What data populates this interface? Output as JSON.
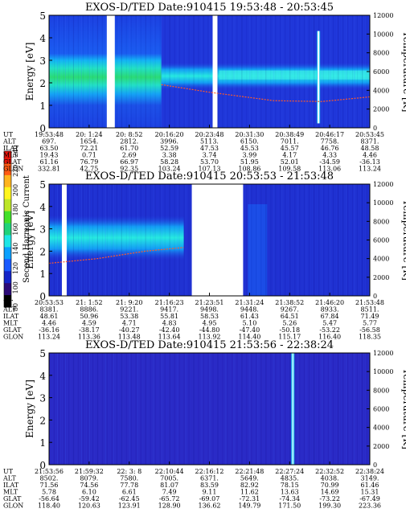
{
  "colorbar": {
    "label": "Second Harmonic Current",
    "ticks": [
      "80",
      "100",
      "120",
      "140",
      "160",
      "180",
      "200",
      "220",
      "240"
    ],
    "colors": [
      "#000000",
      "#2c0a78",
      "#1424c8",
      "#1a5aff",
      "#0aa0ff",
      "#1ee6e6",
      "#21d27a",
      "#43e02a",
      "#bde628",
      "#fff51e",
      "#ffb41e",
      "#ff5a14",
      "#e6140a"
    ]
  },
  "chart_data": [
    {
      "type": "heatmap",
      "title": "EXOS-D/TED   Date:910415  19:53:48 - 20:53:45",
      "ylabel": "Energy [eV]",
      "y2label": "Temperature [K]",
      "ylim": [
        0,
        5
      ],
      "y2lim": [
        0,
        12000
      ],
      "yticks": [
        "0",
        "1",
        "2",
        "3",
        "4",
        "5"
      ],
      "y2ticks": [
        "0",
        "2000",
        "4000",
        "6000",
        "8000",
        "10000",
        "12000"
      ],
      "orbit_table": {
        "row_labels": [
          "UT",
          "ALT",
          "ILAT",
          "MLT",
          "GLAT",
          "GLON"
        ],
        "columns": [
          [
            "19:53:48",
            "697.",
            "63.50",
            "19.43",
            "61.16",
            "332.81"
          ],
          [
            "20: 1:24",
            "1654.",
            "72.21",
            "0.71",
            "76.79",
            "42.75"
          ],
          [
            "20: 8:52",
            "2812.",
            "61.70",
            "2.69",
            "66.97",
            "92.35"
          ],
          [
            "20:16:20",
            "3996.",
            "52.59",
            "3.38",
            "58.28",
            "103.24"
          ],
          [
            "20:23:48",
            "5113.",
            "47.53",
            "3.74",
            "53.70",
            "107.13"
          ],
          [
            "20:31:30",
            "6150.",
            "45.53",
            "3.99",
            "51.95",
            "108.86"
          ],
          [
            "20:38:49",
            "7011.",
            "45.57",
            "4.17",
            "52.01",
            "109.58"
          ],
          [
            "20:46:17",
            "7758.",
            "46.76",
            "4.33",
            "-34.59",
            "113.06"
          ],
          [
            "20:53:45",
            "8371.",
            "48.58",
            "4.46",
            "-36.13",
            "113.24"
          ]
        ]
      },
      "gaps": [
        [
          0.18,
          0.205
        ],
        [
          0.51,
          0.525
        ]
      ],
      "temperature_curve": [
        [
          0.35,
          4600
        ],
        [
          0.5,
          3800
        ],
        [
          0.7,
          2900
        ],
        [
          0.85,
          2800
        ],
        [
          1.0,
          3300
        ]
      ],
      "spikes": [
        {
          "x": 0.84,
          "lo": 0.2,
          "hi": 4.3
        }
      ]
    },
    {
      "type": "heatmap",
      "title": "EXOS-D/TED   Date:910415  20:53:53 - 21:53:48",
      "ylabel": "Energy [eV]",
      "y2label": "Temperature [K]",
      "ylim": [
        0,
        5
      ],
      "y2lim": [
        0,
        12000
      ],
      "yticks": [
        "0",
        "1",
        "2",
        "3",
        "4",
        "5"
      ],
      "y2ticks": [
        "0",
        "2000",
        "4000",
        "6000",
        "8000",
        "10000",
        "12000"
      ],
      "orbit_table": {
        "row_labels": [
          "UT",
          "ALT",
          "ILAT",
          "MLT",
          "GLAT",
          "GLON"
        ],
        "columns": [
          [
            "20:53:53",
            "8381.",
            "48.61",
            "4.46",
            "-36.16",
            "113.24"
          ],
          [
            "21: 1:52",
            "8886.",
            "50.96",
            "4.59",
            "-38.17",
            "113.36"
          ],
          [
            "21: 9:20",
            "9221.",
            "53.38",
            "4.71",
            "-40.27",
            "113.48"
          ],
          [
            "21:16:23",
            "9417.",
            "55.81",
            "4.83",
            "-42.40",
            "113.64"
          ],
          [
            "21:23:51",
            "9498.",
            "58.53",
            "4.95",
            "-44.80",
            "113.92"
          ],
          [
            "21:31:24",
            "9448.",
            "61.43",
            "5.10",
            "-47.40",
            "114.40"
          ],
          [
            "21:38:52",
            "9267.",
            "64.51",
            "5.26",
            "-50.18",
            "115.17"
          ],
          [
            "21:46:20",
            "8933.",
            "67.84",
            "5.47",
            "-53.22",
            "116.40"
          ],
          [
            "21:53:48",
            "8511.",
            "71.49",
            "5.77",
            "-56.58",
            "118.35"
          ]
        ]
      },
      "gaps": [
        [
          0.04,
          0.055
        ],
        [
          0.445,
          0.605
        ]
      ],
      "temperature_curve": [
        [
          0.0,
          3500
        ],
        [
          0.15,
          4000
        ],
        [
          0.3,
          4800
        ],
        [
          0.42,
          5200
        ]
      ],
      "spikes": []
    },
    {
      "type": "heatmap",
      "title": "EXOS-D/TED   Date:910415  21:53:56 - 22:38:24",
      "ylabel": "Energy [eV]",
      "y2label": "Temperature [K]",
      "ylim": [
        0,
        5
      ],
      "y2lim": [
        0,
        12000
      ],
      "yticks": [
        "0",
        "1",
        "2",
        "3",
        "4",
        "5"
      ],
      "y2ticks": [
        "0",
        "2000",
        "4000",
        "6000",
        "8000",
        "10000",
        "12000"
      ],
      "orbit_table": {
        "row_labels": [
          "UT",
          "ALT",
          "ILAT",
          "MLT",
          "GLAT",
          "GLON"
        ],
        "columns": [
          [
            "21:53:56",
            "8502.",
            "71.56",
            "5.78",
            "-56.64",
            "118.40"
          ],
          [
            "21:59:32",
            "8079.",
            "74.56",
            "6.10",
            "-59.42",
            "120.63"
          ],
          [
            "22: 3: 8",
            "7580.",
            "77.78",
            "6.61",
            "-62.45",
            "123.91"
          ],
          [
            "22:10:44",
            "7005.",
            "81.07",
            "7.49",
            "-65.72",
            "128.90"
          ],
          [
            "22:16:12",
            "6371.",
            "83.59",
            "9.11",
            "-69.07",
            "136.62"
          ],
          [
            "22:21:48",
            "5649.",
            "82.92",
            "11.62",
            "-72.31",
            "149.79"
          ],
          [
            "22:27:24",
            "4835.",
            "78.15",
            "13.63",
            "-74.34",
            "171.50"
          ],
          [
            "22:32:52",
            "4038.",
            "70.99",
            "14.69",
            "-73.22",
            "199.30"
          ],
          [
            "22:38:24",
            "3149.",
            "61.46",
            "15.31",
            "-67.49",
            "223.36"
          ]
        ]
      },
      "gaps": [],
      "temperature_curve": [],
      "spikes": [
        {
          "x": 0.76,
          "lo": 0.0,
          "hi": 5.0
        }
      ]
    }
  ]
}
